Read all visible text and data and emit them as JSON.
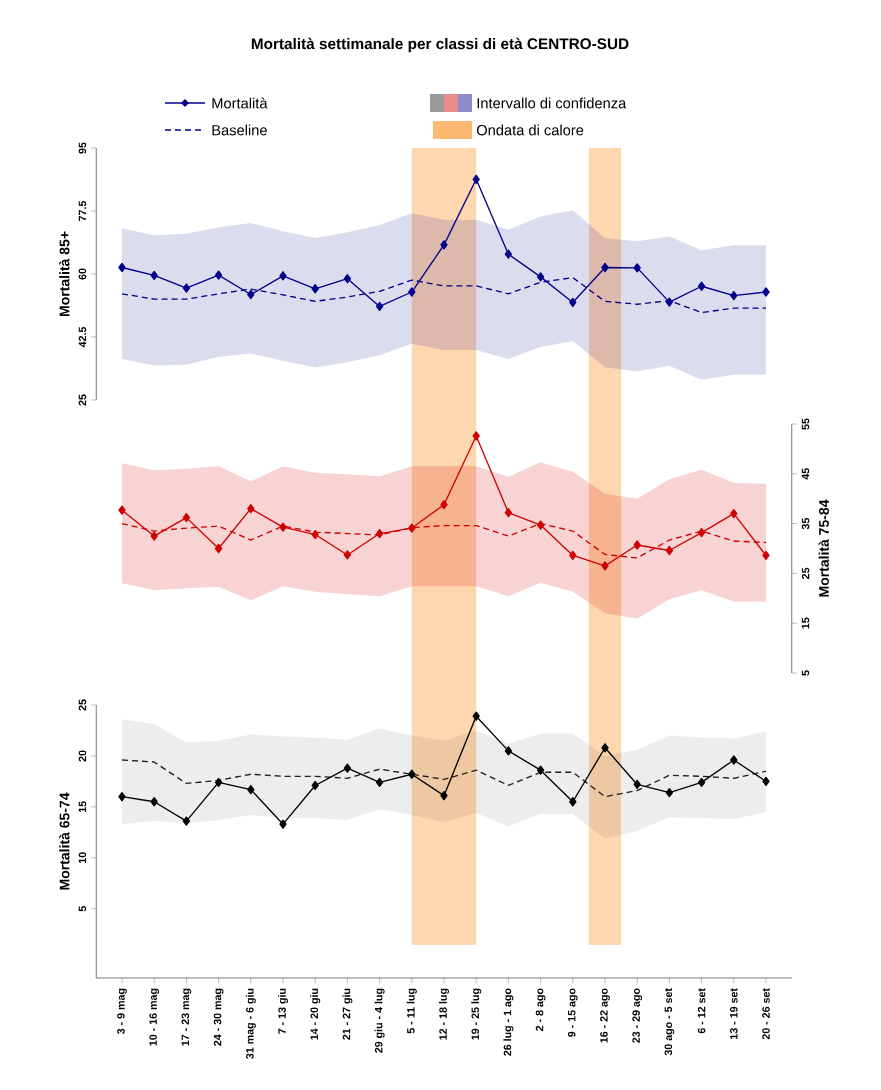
{
  "chart_data": [
    {
      "type": "line",
      "title": "Mortalità settimanale per classi di età CENTRO-SUD",
      "categories": [
        "3 - 9 mag",
        "10 - 16 mag",
        "17 - 23 mag",
        "24 - 30 mag",
        "31 mag - 6 giu",
        "7 - 13 giu",
        "14 - 20 giu",
        "21 - 27 giu",
        "29 giu - 4 lug",
        "5 - 11 lug",
        "12 - 18 lug",
        "19 - 25 lug",
        "26 lug - 1 ago",
        "2 - 8 ago",
        "9 - 15 ago",
        "16 - 22 ago",
        "23 - 29 ago",
        "30 ago - 5 set",
        "6 - 12 set",
        "13 - 19 set",
        "20 - 26 set"
      ],
      "ylabel": "Mortalità 85+",
      "ylim": [
        25,
        95
      ],
      "yticks": [
        25,
        42.5,
        60,
        77.5,
        95
      ],
      "tick_labels": "y",
      "legend": "top",
      "annotations": [
        "Intervallo di confidenza"
      ],
      "bands": [
        {
          "axis": "x",
          "from": "5 - 11 lug",
          "to": "19 - 25 lug",
          "label": "Ondata di calore",
          "color": "#ffa64d"
        },
        {
          "axis": "x",
          "from": "16 - 22 ago",
          "to": "16 - 22 ago",
          "color": "#ffa64d"
        }
      ],
      "series": [
        {
          "name": "Mortalità",
          "color": "#00008b",
          "marker": "diamond",
          "values": [
            61.8,
            59.6,
            56.1,
            59.7,
            54.3,
            59.5,
            55.9,
            58.7,
            51.0,
            55.0,
            68.1,
            86.3,
            65.5,
            59.2,
            52.1,
            61.8,
            61.7,
            52.2,
            56.6,
            54.0,
            55.0
          ]
        },
        {
          "name": "Baseline",
          "color": "#00008b",
          "line_style": "dashed",
          "values": [
            54.5,
            53.0,
            53.0,
            54.5,
            55.8,
            54.2,
            52.4,
            53.6,
            55.2,
            58.3,
            56.7,
            56.7,
            54.5,
            57.7,
            59.0,
            52.4,
            51.6,
            52.6,
            49.3,
            50.5,
            50.5
          ],
          "lower": [
            36.4,
            34.6,
            34.8,
            37.0,
            37.9,
            35.9,
            34.0,
            35.5,
            37.4,
            40.6,
            38.9,
            38.9,
            36.4,
            39.7,
            41.4,
            34.1,
            32.9,
            34.5,
            30.6,
            32.0,
            32.0
          ],
          "upper": [
            72.7,
            70.8,
            71.2,
            73.0,
            74.2,
            71.9,
            70.0,
            71.6,
            73.6,
            76.9,
            75.1,
            75.1,
            72.3,
            76.0,
            77.7,
            70.0,
            69.1,
            70.4,
            66.6,
            68.0,
            68.0
          ]
        }
      ]
    },
    {
      "type": "line",
      "categories": [
        "3 - 9 mag",
        "10 - 16 mag",
        "17 - 23 mag",
        "24 - 30 mag",
        "31 mag - 6 giu",
        "7 - 13 giu",
        "14 - 20 giu",
        "21 - 27 giu",
        "29 giu - 4 lug",
        "5 - 11 lug",
        "12 - 18 lug",
        "19 - 25 lug",
        "26 lug - 1 ago",
        "2 - 8 ago",
        "9 - 15 ago",
        "16 - 22 ago",
        "23 - 29 ago",
        "30 ago - 5 set",
        "6 - 12 set",
        "13 - 19 set",
        "20 - 26 set"
      ],
      "ylabel": "Mortalità 75-84",
      "ylim": [
        5,
        55
      ],
      "yticks": [
        5,
        15,
        25,
        35,
        45,
        55
      ],
      "tick_labels": "y",
      "bands": [
        {
          "axis": "x",
          "from": "5 - 11 lug",
          "to": "19 - 25 lug",
          "color": "#ffa64d"
        },
        {
          "axis": "x",
          "from": "16 - 22 ago",
          "to": "16 - 22 ago",
          "color": "#ffa64d"
        }
      ],
      "series": [
        {
          "color": "#d00000",
          "marker": "diamond",
          "values": [
            37.7,
            32.5,
            36.2,
            30.0,
            38.0,
            34.3,
            32.8,
            28.7,
            33.0,
            34.1,
            38.8,
            52.6,
            37.2,
            34.7,
            28.6,
            26.5,
            30.7,
            29.6,
            33.2,
            37.0,
            28.6
          ]
        },
        {
          "color": "#d00000",
          "line_style": "dashed",
          "values": [
            35.0,
            33.5,
            34.1,
            34.5,
            31.7,
            34.5,
            33.3,
            33.0,
            32.7,
            34.2,
            34.6,
            34.6,
            32.5,
            35.0,
            33.5,
            28.8,
            28.1,
            31.7,
            33.5,
            31.5,
            31.2
          ],
          "lower": [
            23.0,
            21.6,
            22.0,
            22.3,
            19.6,
            22.4,
            21.3,
            20.8,
            20.4,
            22.4,
            22.4,
            22.4,
            20.4,
            23.1,
            21.3,
            17.0,
            15.9,
            19.8,
            21.6,
            19.3,
            19.3
          ],
          "upper": [
            47.1,
            45.7,
            46.0,
            46.5,
            43.5,
            46.5,
            45.2,
            44.9,
            44.5,
            46.5,
            46.5,
            46.5,
            44.4,
            47.3,
            45.4,
            41.0,
            40.0,
            43.9,
            45.8,
            43.2,
            43.0
          ]
        }
      ]
    },
    {
      "type": "line",
      "categories": [
        "3 - 9 mag",
        "10 - 16 mag",
        "17 - 23 mag",
        "24 - 30 mag",
        "31 mag - 6 giu",
        "7 - 13 giu",
        "14 - 20 giu",
        "21 - 27 giu",
        "29 giu - 4 lug",
        "5 - 11 lug",
        "12 - 18 lug",
        "19 - 25 lug",
        "26 lug - 1 ago",
        "2 - 8 ago",
        "9 - 15 ago",
        "16 - 22 ago",
        "23 - 29 ago",
        "30 ago - 5 set",
        "6 - 12 set",
        "13 - 19 set",
        "20 - 26 set"
      ],
      "ylabel": "Mortalità 65-74",
      "ylim": [
        -1.8,
        25
      ],
      "yticks": [
        5,
        10,
        15,
        20,
        25
      ],
      "bands": [
        {
          "axis": "x",
          "from": "5 - 11 lug",
          "to": "19 - 25 lug",
          "color": "#ffa64d"
        },
        {
          "axis": "x",
          "from": "16 - 22 ago",
          "to": "16 - 22 ago",
          "color": "#ffa64d"
        }
      ],
      "series": [
        {
          "color": "#000000",
          "marker": "diamond",
          "values": [
            16.0,
            15.5,
            13.6,
            17.4,
            16.7,
            13.3,
            17.1,
            18.8,
            17.4,
            18.2,
            16.1,
            23.9,
            20.5,
            18.6,
            15.5,
            20.8,
            17.2,
            16.4,
            17.4,
            19.6,
            17.5
          ]
        },
        {
          "color": "#1f1f1f",
          "line_style": "dashed",
          "values": [
            19.6,
            19.4,
            17.3,
            17.6,
            18.2,
            18.0,
            18.0,
            17.8,
            18.7,
            18.2,
            17.7,
            18.6,
            17.1,
            18.4,
            18.4,
            16.0,
            16.6,
            18.1,
            18.0,
            17.8,
            18.5
          ],
          "lower": [
            13.3,
            13.6,
            13.4,
            13.7,
            14.2,
            13.9,
            13.9,
            13.7,
            14.8,
            14.2,
            13.5,
            14.4,
            13.1,
            14.3,
            14.3,
            11.9,
            12.6,
            14.0,
            13.9,
            13.8,
            14.5
          ],
          "upper": [
            23.6,
            23.1,
            21.3,
            21.5,
            22.1,
            21.9,
            21.8,
            21.6,
            22.7,
            22.0,
            21.5,
            22.5,
            21.2,
            22.2,
            22.2,
            20.0,
            20.6,
            22.0,
            21.8,
            21.7,
            22.4
          ]
        }
      ]
    }
  ]
}
